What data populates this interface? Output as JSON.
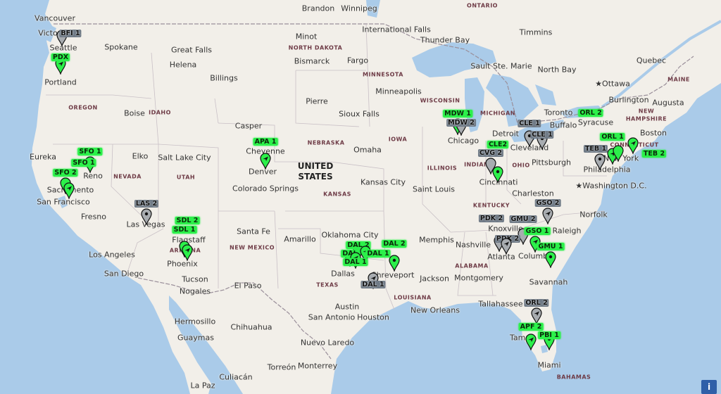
{
  "colors": {
    "water": "#aacbe9",
    "land": "#f2efe9",
    "active": "#2cf04a",
    "inactive": "#a8acb0",
    "border": "#9a8f9a"
  },
  "country_label": {
    "line1": "UNITED",
    "line2": "STATES"
  },
  "cities": [
    "Vancouver",
    "Victo",
    "Seattle",
    "Spokane",
    "Great Falls",
    "Helena",
    "Billings",
    "Minot",
    "Bismarck",
    "Fargo",
    "Brandon",
    "Winnipeg",
    "International Falls",
    "Thunder Bay",
    "Timmins",
    "Portland",
    "Boise",
    "Pierre",
    "Minneapolis",
    "Sioux Falls",
    "Casper",
    "Cheyenne",
    "Denver",
    "Colorado Springs",
    "Omaha",
    "Salt Lake City",
    "Elko",
    "Eureka",
    "Reno",
    "Sacramento",
    "San Francisco",
    "Fresno",
    "Las Vegas",
    "Los Angeles",
    "San Diego",
    "Phoenix",
    "Tucson",
    "Nogales",
    "El Paso",
    "Santa Fe",
    "Amarillo",
    "Oklahoma City",
    "Dallas",
    "Shreveport",
    "Austin",
    "Houston",
    "San Antonio",
    "Hermosillo",
    "Chihuahua",
    "Guaymas",
    "Nuevo Laredo",
    "Monterrey",
    "Torreón",
    "Culiacán",
    "La Paz",
    "Kansas City",
    "Saint Louis",
    "Memphis",
    "Jackson",
    "New Orleans",
    "Montgomery",
    "Nashville",
    "Atlanta",
    "Knoxville",
    "Charleston",
    "Cincinnati",
    "Pittsburgh",
    "Cleveland",
    "Detroit",
    "Chicago",
    "Toronto",
    "Buffalo",
    "Syracuse",
    "Raleigh",
    "Norfolk",
    "Columbia",
    "Savannah",
    "Tallahassee",
    "Tampa",
    "Miami",
    "★Washington D.C.",
    "Philadelphia",
    "New York",
    "Boston",
    "Burlington",
    "Augusta",
    "★Ottawa",
    "Quebec",
    "Sault Ste. Marie",
    "North Bay",
    "Flagstaff"
  ],
  "states": [
    "ONTARIO",
    "NORTH DAKOTA",
    "MINNESOTA",
    "WISCONSIN",
    "MICHIGAN",
    "OREGON",
    "IDAHO",
    "NEBRASKA",
    "IOWA",
    "ILLINOIS",
    "INDIANA",
    "OHIO",
    "NEVADA",
    "UTAH",
    "KANSAS",
    "KENTUCKY",
    "NEW MEXICO",
    "ARIZONA",
    "TEXAS",
    "LOUISIANA",
    "ALABAMA",
    "MAINE",
    "NEW",
    "HAMPSHIRE",
    "CONNECTICUT",
    "BAHAMAS"
  ],
  "markers": [
    {
      "label": "BFI 1",
      "status": "inactive",
      "icon": "none"
    },
    {
      "label": "PDX",
      "status": "active",
      "icon": "plane"
    },
    {
      "label": "SFO 1",
      "status": "active",
      "icon": "plane"
    },
    {
      "label": "SFO 2",
      "status": "active",
      "icon": "none"
    },
    {
      "label": "SFO 1",
      "status": "active",
      "icon": "plane"
    },
    {
      "label": "LAS 2",
      "status": "inactive",
      "icon": "dot"
    },
    {
      "label": "SDL 1",
      "status": "active",
      "icon": "none"
    },
    {
      "label": "SDL 2",
      "status": "active",
      "icon": "plane"
    },
    {
      "label": "APA 1",
      "status": "active",
      "icon": "plane"
    },
    {
      "label": "DAL 2",
      "status": "active",
      "icon": "none"
    },
    {
      "label": "DAL",
      "status": "active",
      "icon": "none"
    },
    {
      "label": "DAL 1",
      "status": "active",
      "icon": "plane"
    },
    {
      "label": "DAL 1",
      "status": "active",
      "icon": "plane"
    },
    {
      "label": "DAL 1",
      "status": "inactive",
      "icon": "plane"
    },
    {
      "label": "DAL 2",
      "status": "active",
      "icon": "dot"
    },
    {
      "label": "MDW 1",
      "status": "active",
      "icon": "none"
    },
    {
      "label": "MDW 2",
      "status": "inactive",
      "icon": "none"
    },
    {
      "label": "CLE 1",
      "status": "inactive",
      "icon": "dot"
    },
    {
      "label": "CLE 1",
      "status": "inactive",
      "icon": "dot"
    },
    {
      "label": "CVG 2",
      "status": "inactive",
      "icon": "none"
    },
    {
      "label": "CLE2",
      "status": "active",
      "icon": "dot"
    },
    {
      "label": "GSO 2",
      "status": "inactive",
      "icon": "plane"
    },
    {
      "label": "GMU 2",
      "status": "inactive",
      "icon": "none"
    },
    {
      "label": "GSO 1",
      "status": "active",
      "icon": "plane"
    },
    {
      "label": "PDK 2",
      "status": "inactive",
      "icon": "none"
    },
    {
      "label": "PDK 2",
      "status": "inactive",
      "icon": "plane"
    },
    {
      "label": "GMU 1",
      "status": "active",
      "icon": "dot"
    },
    {
      "label": "TEB 1",
      "status": "inactive",
      "icon": "dot"
    },
    {
      "label": "ORL 1",
      "status": "active",
      "icon": "plane"
    },
    {
      "label": "ORL 2",
      "status": "active",
      "icon": "none"
    },
    {
      "label": "TEB 2",
      "status": "active",
      "icon": "plane"
    },
    {
      "label": "ORL 2",
      "status": "inactive",
      "icon": "plane"
    },
    {
      "label": "APF 2",
      "status": "active",
      "icon": "plane"
    },
    {
      "label": "PBI 1",
      "status": "active",
      "icon": "dot"
    }
  ],
  "info_button": {
    "label": "i"
  }
}
